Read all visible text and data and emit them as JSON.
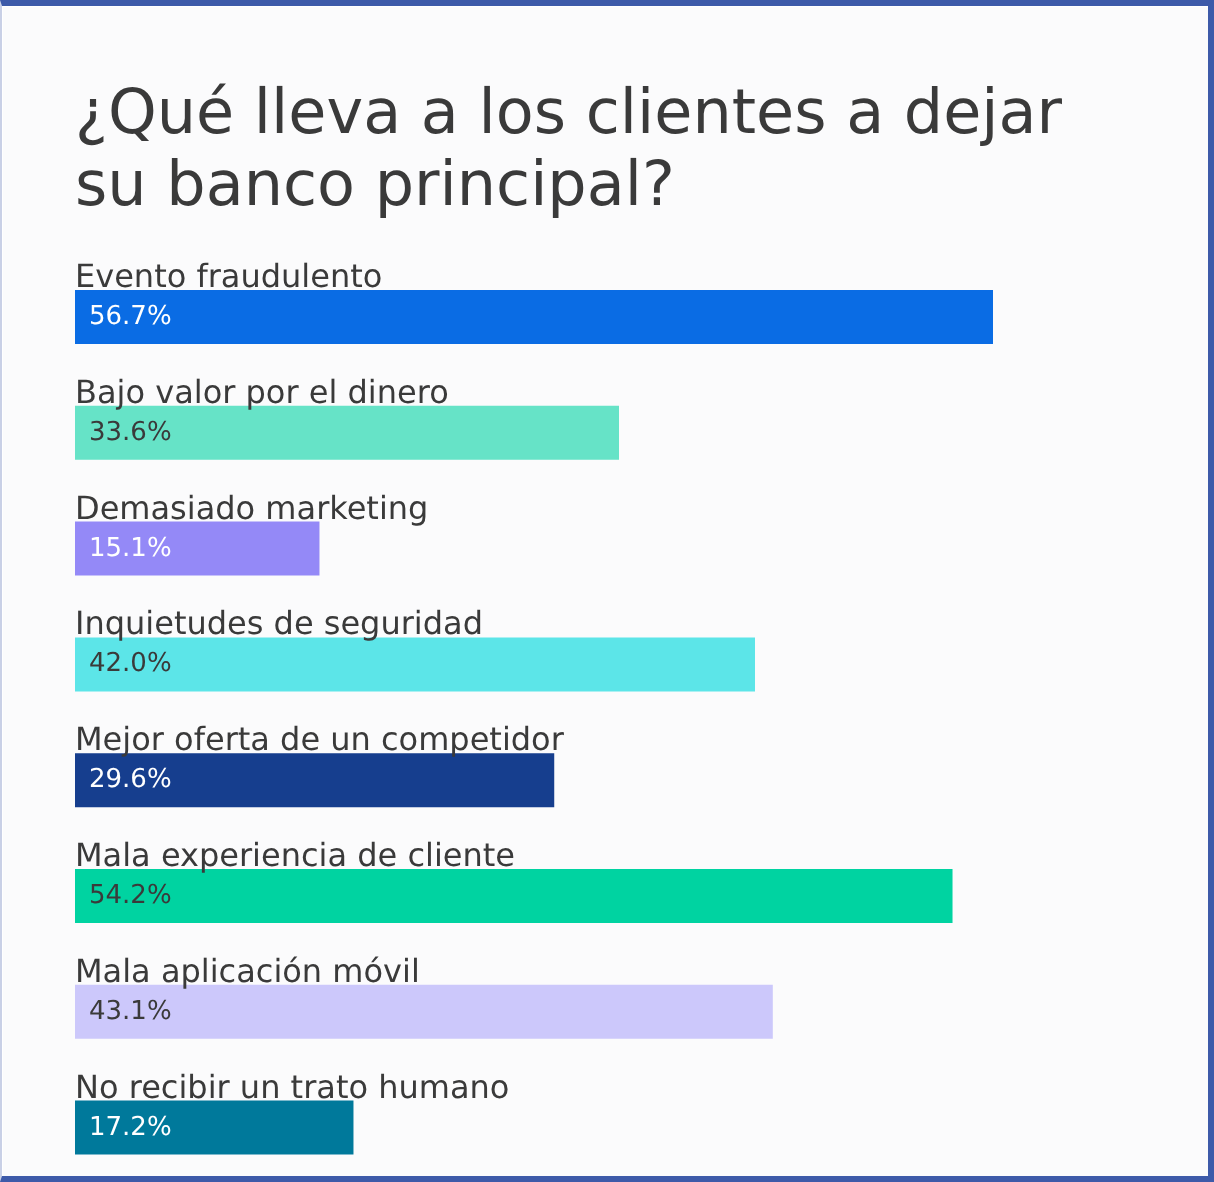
{
  "chart_data": {
    "type": "bar",
    "orientation": "horizontal",
    "title": "¿Qué lleva a los clientes a dejar su banco principal?",
    "categories": [
      "Evento fraudulento",
      "Bajo valor por el dinero",
      "Demasiado marketing",
      "Inquietudes de seguridad",
      "Mejor oferta de un competidor",
      "Mala experiencia de cliente",
      "Mala aplicación móvil",
      "No recibir un trato humano"
    ],
    "values": [
      56.7,
      33.6,
      15.1,
      42.0,
      29.6,
      54.2,
      43.1,
      17.2
    ],
    "colors": [
      "#0a6ce4",
      "#66e3c7",
      "#9489f7",
      "#5ce5e8",
      "#163e8e",
      "#00d3a1",
      "#ccc8fb",
      "#00799b"
    ],
    "value_labels": [
      "56.7%",
      "33.6%",
      "15.1%",
      "42.0%",
      "29.6%",
      "54.2%",
      "43.1%",
      "17.2%"
    ],
    "tick_labels": "y"
  }
}
